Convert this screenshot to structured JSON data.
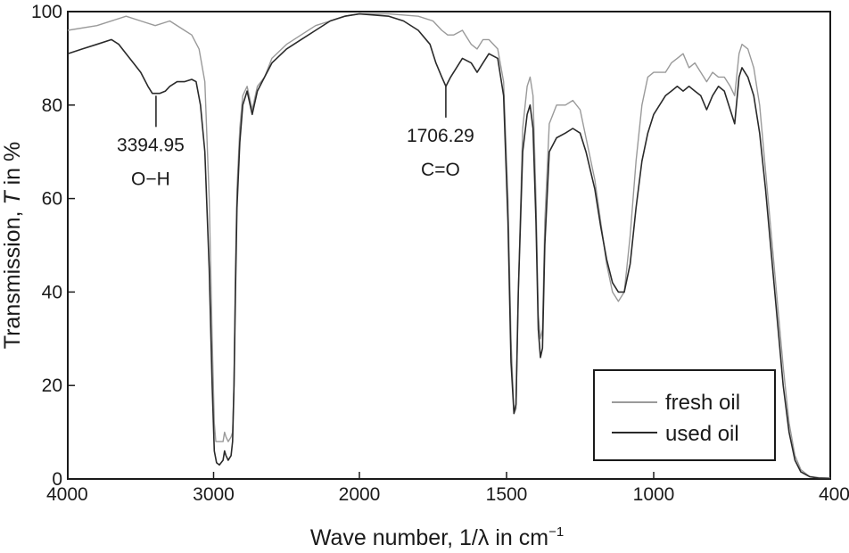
{
  "chart_data": {
    "type": "line",
    "title": "",
    "xlabel": "Wave number, 1/λ in cm",
    "xlabel_superscript": "−1",
    "ylabel": "Transmission, T in %",
    "xlim": [
      4000,
      400
    ],
    "ylim": [
      0,
      100
    ],
    "x_ticks": [
      "4000",
      "3000",
      "2000",
      "1500",
      "1000",
      "400"
    ],
    "y_ticks": [
      "0",
      "20",
      "40",
      "60",
      "80",
      "100"
    ],
    "grid": false,
    "legend_position": "bottom-right",
    "x_scale": "piecewise: 4000–2000 compressed, 2000–400 expanded",
    "annotations": [
      {
        "x": 3394.95,
        "y": 82,
        "value": "3394.95",
        "group": "O−H"
      },
      {
        "x": 1706.29,
        "y": 84,
        "value": "1706.29",
        "group": "C=O"
      }
    ],
    "series": [
      {
        "name": "fresh oil",
        "color": "#9a9a9a",
        "points": [
          [
            4000,
            96
          ],
          [
            3800,
            97
          ],
          [
            3600,
            99
          ],
          [
            3500,
            98
          ],
          [
            3400,
            97
          ],
          [
            3300,
            98
          ],
          [
            3200,
            96
          ],
          [
            3150,
            95
          ],
          [
            3100,
            92
          ],
          [
            3060,
            85
          ],
          [
            3030,
            60
          ],
          [
            3010,
            30
          ],
          [
            2995,
            12
          ],
          [
            2985,
            8
          ],
          [
            2960,
            8
          ],
          [
            2935,
            8
          ],
          [
            2925,
            10
          ],
          [
            2915,
            9
          ],
          [
            2900,
            8
          ],
          [
            2880,
            9
          ],
          [
            2870,
            10
          ],
          [
            2860,
            20
          ],
          [
            2850,
            45
          ],
          [
            2840,
            62
          ],
          [
            2820,
            75
          ],
          [
            2800,
            82
          ],
          [
            2770,
            84
          ],
          [
            2735,
            79
          ],
          [
            2700,
            84
          ],
          [
            2650,
            86
          ],
          [
            2600,
            90
          ],
          [
            2500,
            93
          ],
          [
            2400,
            95
          ],
          [
            2300,
            97
          ],
          [
            2200,
            98
          ],
          [
            2100,
            99
          ],
          [
            2000,
            99.5
          ],
          [
            1900,
            99.5
          ],
          [
            1800,
            99
          ],
          [
            1750,
            98
          ],
          [
            1720,
            96
          ],
          [
            1700,
            95
          ],
          [
            1680,
            95
          ],
          [
            1650,
            96
          ],
          [
            1620,
            93
          ],
          [
            1600,
            92
          ],
          [
            1580,
            94
          ],
          [
            1560,
            94
          ],
          [
            1530,
            92
          ],
          [
            1510,
            85
          ],
          [
            1495,
            60
          ],
          [
            1485,
            30
          ],
          [
            1475,
            14
          ],
          [
            1468,
            15
          ],
          [
            1460,
            40
          ],
          [
            1445,
            75
          ],
          [
            1430,
            84
          ],
          [
            1420,
            86
          ],
          [
            1410,
            82
          ],
          [
            1400,
            60
          ],
          [
            1392,
            35
          ],
          [
            1385,
            30
          ],
          [
            1378,
            32
          ],
          [
            1370,
            55
          ],
          [
            1355,
            76
          ],
          [
            1330,
            80
          ],
          [
            1300,
            80
          ],
          [
            1275,
            81
          ],
          [
            1250,
            79
          ],
          [
            1230,
            73
          ],
          [
            1200,
            64
          ],
          [
            1180,
            55
          ],
          [
            1160,
            46
          ],
          [
            1140,
            40
          ],
          [
            1120,
            38
          ],
          [
            1100,
            40
          ],
          [
            1080,
            52
          ],
          [
            1060,
            68
          ],
          [
            1040,
            80
          ],
          [
            1020,
            86
          ],
          [
            1000,
            87
          ],
          [
            960,
            87
          ],
          [
            940,
            89
          ],
          [
            920,
            90
          ],
          [
            900,
            91
          ],
          [
            880,
            88
          ],
          [
            860,
            89
          ],
          [
            840,
            87
          ],
          [
            820,
            85
          ],
          [
            800,
            87
          ],
          [
            780,
            86
          ],
          [
            760,
            86
          ],
          [
            740,
            84
          ],
          [
            725,
            82
          ],
          [
            710,
            91
          ],
          [
            700,
            93
          ],
          [
            680,
            92
          ],
          [
            660,
            88
          ],
          [
            640,
            80
          ],
          [
            620,
            66
          ],
          [
            600,
            52
          ],
          [
            580,
            38
          ],
          [
            560,
            24
          ],
          [
            540,
            12
          ],
          [
            520,
            5
          ],
          [
            500,
            2
          ],
          [
            470,
            0.5
          ],
          [
            440,
            0.3
          ],
          [
            400,
            0.2
          ]
        ]
      },
      {
        "name": "used oil",
        "color": "#2a2a2a",
        "points": [
          [
            4000,
            91
          ],
          [
            3900,
            92
          ],
          [
            3800,
            93
          ],
          [
            3700,
            94
          ],
          [
            3650,
            93
          ],
          [
            3600,
            91
          ],
          [
            3550,
            89
          ],
          [
            3500,
            87
          ],
          [
            3450,
            84
          ],
          [
            3420,
            82.5
          ],
          [
            3395,
            82.5
          ],
          [
            3370,
            82.5
          ],
          [
            3330,
            83
          ],
          [
            3300,
            84
          ],
          [
            3250,
            85
          ],
          [
            3200,
            85
          ],
          [
            3150,
            85.5
          ],
          [
            3120,
            85
          ],
          [
            3090,
            80
          ],
          [
            3060,
            70
          ],
          [
            3030,
            45
          ],
          [
            3010,
            20
          ],
          [
            2995,
            6
          ],
          [
            2980,
            3.5
          ],
          [
            2960,
            3
          ],
          [
            2935,
            4
          ],
          [
            2925,
            6
          ],
          [
            2915,
            5
          ],
          [
            2900,
            4
          ],
          [
            2880,
            5
          ],
          [
            2870,
            8
          ],
          [
            2860,
            20
          ],
          [
            2850,
            40
          ],
          [
            2840,
            58
          ],
          [
            2820,
            72
          ],
          [
            2800,
            80
          ],
          [
            2770,
            83
          ],
          [
            2735,
            78
          ],
          [
            2700,
            83
          ],
          [
            2650,
            86
          ],
          [
            2600,
            89
          ],
          [
            2500,
            92
          ],
          [
            2400,
            94
          ],
          [
            2300,
            96
          ],
          [
            2200,
            98
          ],
          [
            2100,
            99
          ],
          [
            2000,
            99.5
          ],
          [
            1900,
            99
          ],
          [
            1850,
            98
          ],
          [
            1800,
            96
          ],
          [
            1760,
            93
          ],
          [
            1740,
            89
          ],
          [
            1720,
            86
          ],
          [
            1706,
            84
          ],
          [
            1690,
            86
          ],
          [
            1670,
            88
          ],
          [
            1650,
            90
          ],
          [
            1620,
            89
          ],
          [
            1600,
            87
          ],
          [
            1580,
            89
          ],
          [
            1560,
            91
          ],
          [
            1530,
            90
          ],
          [
            1510,
            82
          ],
          [
            1495,
            55
          ],
          [
            1485,
            25
          ],
          [
            1475,
            14
          ],
          [
            1468,
            16
          ],
          [
            1460,
            40
          ],
          [
            1445,
            70
          ],
          [
            1430,
            78
          ],
          [
            1420,
            80
          ],
          [
            1410,
            75
          ],
          [
            1400,
            55
          ],
          [
            1392,
            32
          ],
          [
            1385,
            26
          ],
          [
            1378,
            28
          ],
          [
            1370,
            50
          ],
          [
            1355,
            70
          ],
          [
            1330,
            73
          ],
          [
            1300,
            74
          ],
          [
            1275,
            75
          ],
          [
            1250,
            74
          ],
          [
            1230,
            70
          ],
          [
            1200,
            62
          ],
          [
            1180,
            54
          ],
          [
            1160,
            47
          ],
          [
            1140,
            42
          ],
          [
            1120,
            40
          ],
          [
            1100,
            40
          ],
          [
            1080,
            46
          ],
          [
            1060,
            58
          ],
          [
            1040,
            68
          ],
          [
            1020,
            74
          ],
          [
            1000,
            78
          ],
          [
            960,
            82
          ],
          [
            940,
            83
          ],
          [
            920,
            84
          ],
          [
            900,
            83
          ],
          [
            880,
            84
          ],
          [
            860,
            83
          ],
          [
            840,
            82
          ],
          [
            820,
            79
          ],
          [
            800,
            82
          ],
          [
            780,
            84
          ],
          [
            760,
            83
          ],
          [
            740,
            79
          ],
          [
            725,
            76
          ],
          [
            710,
            86
          ],
          [
            700,
            88
          ],
          [
            680,
            86
          ],
          [
            660,
            82
          ],
          [
            640,
            74
          ],
          [
            620,
            62
          ],
          [
            600,
            48
          ],
          [
            580,
            34
          ],
          [
            560,
            20
          ],
          [
            540,
            10
          ],
          [
            520,
            4
          ],
          [
            500,
            1.5
          ],
          [
            470,
            0.5
          ],
          [
            440,
            0.2
          ],
          [
            400,
            0.1
          ]
        ]
      }
    ]
  }
}
